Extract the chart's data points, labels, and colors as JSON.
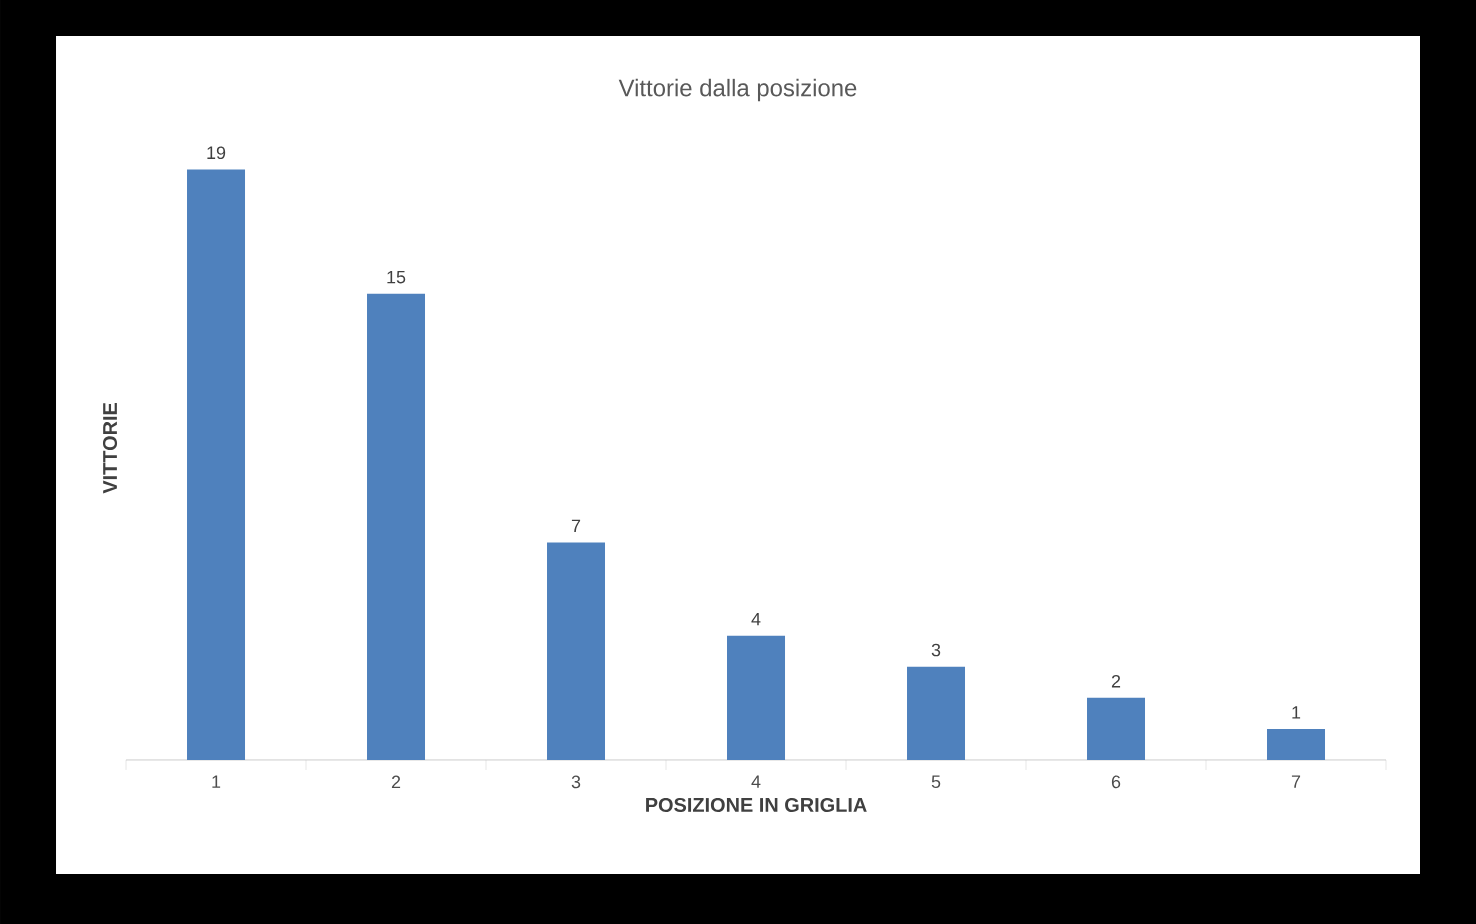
{
  "chart_data": {
    "type": "bar",
    "title": "Vittorie dalla posizione",
    "xlabel": "POSIZIONE IN GRIGLIA",
    "ylabel": "VITTORIE",
    "categories": [
      "1",
      "2",
      "3",
      "4",
      "5",
      "6",
      "7"
    ],
    "values": [
      19,
      15,
      7,
      4,
      3,
      2,
      1
    ],
    "color": "#4f81bd",
    "data_labels": true
  }
}
